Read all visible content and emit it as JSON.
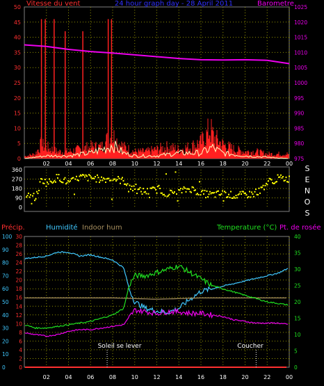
{
  "colors": {
    "background": "#000000",
    "grid": "#b8b800",
    "wind_avg": "#ff2020",
    "wind_gust": "#ffffc0",
    "wind_axis": "#ff3030",
    "barometer": "#ee00ee",
    "direction": "#ffff00",
    "precip": "#ff3030",
    "humidity": "#40c8ff",
    "indoor_hum": "#a89060",
    "temperature": "#20e020",
    "dewpoint": "#ee00ee",
    "time_axis": "#ffffff",
    "title": "#3030ff",
    "white": "#ffffff"
  },
  "header": {
    "wind_title": "Vitesse du vent",
    "center_title": "24 hour graph day - 28 April 2011",
    "baro_title": "Barometre"
  },
  "compass_letters": [
    "S",
    "E",
    "N",
    "O",
    "S"
  ],
  "legend": {
    "precip": "Précip.",
    "humidity": "Humidité",
    "indoor_hum": "Indoor hum",
    "temperature": "Temperature (°C)",
    "dewpoint": "Pt. de rosée"
  },
  "annotations": {
    "sunrise": "Soleil se lever",
    "sunset": "Coucher"
  },
  "chart_data": [
    {
      "type": "bar",
      "panel": "wind",
      "title": "Vitesse du vent",
      "time_ticks": [
        "02",
        "04",
        "06",
        "08",
        "10",
        "12",
        "14",
        "16",
        "18",
        "20",
        "22",
        "00"
      ],
      "ylim_left": [
        0,
        50
      ],
      "yticks_left": [
        "0",
        "5",
        "10",
        "15",
        "20",
        "25",
        "30",
        "35",
        "40",
        "45",
        "50"
      ],
      "ylim_right": [
        975,
        1025
      ],
      "yticks_right": [
        "975",
        "980",
        "985",
        "990",
        "995",
        "1000",
        "1005",
        "1010",
        "1015",
        "1020",
        "1025"
      ],
      "gust_spikes": [
        {
          "x": 1.55,
          "value": 46
        },
        {
          "x": 1.9,
          "value": 46
        },
        {
          "x": 2.7,
          "value": 46
        },
        {
          "x": 3.7,
          "value": 42
        },
        {
          "x": 5.3,
          "value": 42
        },
        {
          "x": 7.6,
          "value": 46
        },
        {
          "x": 7.9,
          "value": 46
        }
      ],
      "wind_avg_profile": [
        {
          "x": 0,
          "value": 1
        },
        {
          "x": 1,
          "value": 2
        },
        {
          "x": 1.5,
          "value": 6
        },
        {
          "x": 2,
          "value": 5
        },
        {
          "x": 3,
          "value": 3
        },
        {
          "x": 4,
          "value": 3
        },
        {
          "x": 5,
          "value": 4
        },
        {
          "x": 6,
          "value": 5
        },
        {
          "x": 7,
          "value": 5
        },
        {
          "x": 7.5,
          "value": 8
        },
        {
          "x": 8,
          "value": 10
        },
        {
          "x": 8.5,
          "value": 7
        },
        {
          "x": 9,
          "value": 5
        },
        {
          "x": 10,
          "value": 3
        },
        {
          "x": 11,
          "value": 3
        },
        {
          "x": 12,
          "value": 4
        },
        {
          "x": 13,
          "value": 5
        },
        {
          "x": 14,
          "value": 4
        },
        {
          "x": 15,
          "value": 5
        },
        {
          "x": 16,
          "value": 7
        },
        {
          "x": 16.5,
          "value": 10
        },
        {
          "x": 16.8,
          "value": 13
        },
        {
          "x": 17.2,
          "value": 9
        },
        {
          "x": 18,
          "value": 6
        },
        {
          "x": 19,
          "value": 4
        },
        {
          "x": 20,
          "value": 3
        },
        {
          "x": 21,
          "value": 3
        },
        {
          "x": 22,
          "value": 2
        },
        {
          "x": 23,
          "value": 2
        },
        {
          "x": 24,
          "value": 2
        }
      ],
      "wind_gust_profile": [
        {
          "x": 0,
          "value": 0
        },
        {
          "x": 2,
          "value": 1
        },
        {
          "x": 4,
          "value": 1
        },
        {
          "x": 6,
          "value": 2
        },
        {
          "x": 7.5,
          "value": 4
        },
        {
          "x": 8,
          "value": 5
        },
        {
          "x": 9,
          "value": 2
        },
        {
          "x": 10,
          "value": 1
        },
        {
          "x": 12,
          "value": 1
        },
        {
          "x": 14,
          "value": 2
        },
        {
          "x": 16,
          "value": 2
        },
        {
          "x": 17,
          "value": 4
        },
        {
          "x": 18,
          "value": 2
        },
        {
          "x": 20,
          "value": 1
        },
        {
          "x": 24,
          "value": 0
        }
      ],
      "barometer": [
        {
          "x": 0,
          "value": 1012.5
        },
        {
          "x": 2,
          "value": 1012.0
        },
        {
          "x": 4,
          "value": 1011.0
        },
        {
          "x": 6,
          "value": 1010.3
        },
        {
          "x": 8,
          "value": 1009.8
        },
        {
          "x": 10,
          "value": 1009.2
        },
        {
          "x": 12,
          "value": 1008.6
        },
        {
          "x": 14,
          "value": 1008.0
        },
        {
          "x": 16,
          "value": 1007.6
        },
        {
          "x": 18,
          "value": 1007.5
        },
        {
          "x": 20,
          "value": 1007.6
        },
        {
          "x": 22,
          "value": 1007.4
        },
        {
          "x": 24,
          "value": 1006.3
        }
      ]
    },
    {
      "type": "scatter",
      "panel": "direction",
      "ylim": [
        0,
        360
      ],
      "yticks": [
        "0",
        "90",
        "180",
        "270",
        "360"
      ],
      "trend": [
        {
          "x": 0,
          "value": 110
        },
        {
          "x": 1,
          "value": 95
        },
        {
          "x": 1.5,
          "value": 270
        },
        {
          "x": 2,
          "value": 230
        },
        {
          "x": 3,
          "value": 290
        },
        {
          "x": 4,
          "value": 230
        },
        {
          "x": 5,
          "value": 290
        },
        {
          "x": 6,
          "value": 280
        },
        {
          "x": 7,
          "value": 270
        },
        {
          "x": 8,
          "value": 275
        },
        {
          "x": 9,
          "value": 250
        },
        {
          "x": 10,
          "value": 160
        },
        {
          "x": 11,
          "value": 150
        },
        {
          "x": 12,
          "value": 170
        },
        {
          "x": 13,
          "value": 130
        },
        {
          "x": 14,
          "value": 150
        },
        {
          "x": 15,
          "value": 180
        },
        {
          "x": 16,
          "value": 130
        },
        {
          "x": 17,
          "value": 120
        },
        {
          "x": 18,
          "value": 130
        },
        {
          "x": 19,
          "value": 110
        },
        {
          "x": 20,
          "value": 120
        },
        {
          "x": 21,
          "value": 130
        },
        {
          "x": 22,
          "value": 240
        },
        {
          "x": 23,
          "value": 280
        },
        {
          "x": 24,
          "value": 270
        }
      ],
      "spread": 35
    },
    {
      "type": "line",
      "panel": "climate",
      "ylim_precip": [
        0,
        30
      ],
      "yticks_precip": [
        "0",
        "2",
        "4",
        "6",
        "8",
        "10",
        "12",
        "14",
        "16",
        "18",
        "20",
        "22",
        "24",
        "26",
        "28",
        "30"
      ],
      "ylim_humidity": [
        0,
        100
      ],
      "yticks_humidity": [
        "0",
        "10",
        "20",
        "30",
        "40",
        "50",
        "60",
        "70",
        "80",
        "90",
        "100"
      ],
      "ylim_temp": [
        0,
        40
      ],
      "yticks_temp": [
        "0",
        "5",
        "10",
        "15",
        "20",
        "25",
        "30",
        "35",
        "40"
      ],
      "series": [
        {
          "name": "Précip.",
          "key": "precip",
          "values": [
            {
              "x": 0,
              "value": 0
            },
            {
              "x": 24,
              "value": 0
            }
          ]
        },
        {
          "name": "Humidité",
          "key": "humidity",
          "values": [
            {
              "x": 0,
              "value": 83
            },
            {
              "x": 2,
              "value": 85
            },
            {
              "x": 3,
              "value": 88
            },
            {
              "x": 4,
              "value": 88
            },
            {
              "x": 5,
              "value": 85
            },
            {
              "x": 6,
              "value": 86
            },
            {
              "x": 7,
              "value": 84
            },
            {
              "x": 8,
              "value": 82
            },
            {
              "x": 9,
              "value": 76
            },
            {
              "x": 9.5,
              "value": 60
            },
            {
              "x": 10,
              "value": 50
            },
            {
              "x": 11,
              "value": 45
            },
            {
              "x": 12,
              "value": 43
            },
            {
              "x": 13,
              "value": 42
            },
            {
              "x": 14,
              "value": 45
            },
            {
              "x": 15,
              "value": 52
            },
            {
              "x": 16,
              "value": 58
            },
            {
              "x": 17,
              "value": 60
            },
            {
              "x": 18,
              "value": 62
            },
            {
              "x": 19,
              "value": 64
            },
            {
              "x": 20,
              "value": 66
            },
            {
              "x": 21,
              "value": 68
            },
            {
              "x": 22,
              "value": 70
            },
            {
              "x": 23,
              "value": 72
            },
            {
              "x": 24,
              "value": 76
            }
          ]
        },
        {
          "name": "Indoor hum",
          "key": "indoor_hum",
          "values": [
            {
              "x": 0,
              "value": 53
            },
            {
              "x": 8,
              "value": 53
            },
            {
              "x": 12,
              "value": 52
            },
            {
              "x": 16,
              "value": 53
            },
            {
              "x": 20,
              "value": 53
            },
            {
              "x": 24,
              "value": 53
            }
          ]
        },
        {
          "name": "Temperature (°C)",
          "key": "temperature",
          "values": [
            {
              "x": 0,
              "value": 13
            },
            {
              "x": 1,
              "value": 12
            },
            {
              "x": 2,
              "value": 12
            },
            {
              "x": 3,
              "value": 12.5
            },
            {
              "x": 4,
              "value": 13
            },
            {
              "x": 5,
              "value": 13.5
            },
            {
              "x": 6,
              "value": 14
            },
            {
              "x": 7,
              "value": 15
            },
            {
              "x": 8,
              "value": 16
            },
            {
              "x": 9,
              "value": 18
            },
            {
              "x": 9.5,
              "value": 25
            },
            {
              "x": 10,
              "value": 28
            },
            {
              "x": 11,
              "value": 28
            },
            {
              "x": 12,
              "value": 29
            },
            {
              "x": 13,
              "value": 30
            },
            {
              "x": 14,
              "value": 31
            },
            {
              "x": 15,
              "value": 29
            },
            {
              "x": 16,
              "value": 27
            },
            {
              "x": 17,
              "value": 25
            },
            {
              "x": 18,
              "value": 24
            },
            {
              "x": 19,
              "value": 23
            },
            {
              "x": 20,
              "value": 22
            },
            {
              "x": 21,
              "value": 21
            },
            {
              "x": 22,
              "value": 20
            },
            {
              "x": 23,
              "value": 19.5
            },
            {
              "x": 24,
              "value": 19
            }
          ]
        },
        {
          "name": "Pt. de rosée",
          "key": "dewpoint",
          "values": [
            {
              "x": 0,
              "value": 10.5
            },
            {
              "x": 1,
              "value": 10
            },
            {
              "x": 2,
              "value": 9.5
            },
            {
              "x": 3,
              "value": 10
            },
            {
              "x": 4,
              "value": 11
            },
            {
              "x": 5,
              "value": 11.5
            },
            {
              "x": 6,
              "value": 11.5
            },
            {
              "x": 7,
              "value": 12
            },
            {
              "x": 8,
              "value": 12.5
            },
            {
              "x": 9,
              "value": 13
            },
            {
              "x": 10,
              "value": 17.5
            },
            {
              "x": 11,
              "value": 17
            },
            {
              "x": 12,
              "value": 16.5
            },
            {
              "x": 13,
              "value": 17
            },
            {
              "x": 14,
              "value": 17
            },
            {
              "x": 15,
              "value": 16.5
            },
            {
              "x": 16,
              "value": 16.5
            },
            {
              "x": 17,
              "value": 16
            },
            {
              "x": 18,
              "value": 15.5
            },
            {
              "x": 19,
              "value": 14.5
            },
            {
              "x": 20,
              "value": 14
            },
            {
              "x": 21,
              "value": 13.5
            },
            {
              "x": 22,
              "value": 13.5
            },
            {
              "x": 23,
              "value": 13.5
            },
            {
              "x": 24,
              "value": 13
            }
          ]
        }
      ],
      "markers": [
        {
          "label": "Soleil se lever",
          "x": 7.5
        },
        {
          "label": "Coucher",
          "x": 21
        }
      ]
    }
  ]
}
